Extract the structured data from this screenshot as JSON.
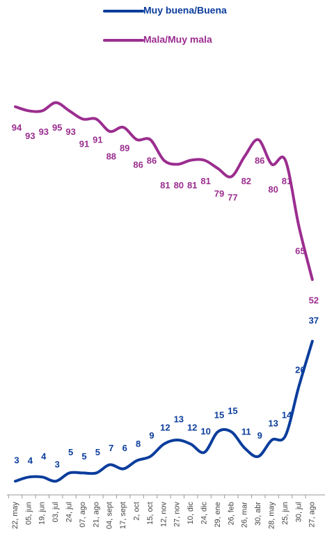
{
  "chart_data": {
    "type": "line",
    "categories": [
      "22, may",
      "05, jun",
      "19, jun",
      "03, jul",
      "24, jul",
      "07, ago",
      "21, ago",
      "04, sept",
      "17, sept",
      "2, oct",
      "15, oct",
      "12, nov",
      "27, nov",
      "10, dic",
      "24, dic",
      "29, ene",
      "26, feb",
      "26, mar",
      "30, abr",
      "28, may",
      "25, jun",
      "30, jul",
      "27, ago"
    ],
    "series": [
      {
        "name": "Muy buena/Buena",
        "color": "#0b3d9c",
        "values": [
          3,
          4,
          4,
          3,
          5,
          5,
          5,
          7,
          6,
          8,
          9,
          12,
          13,
          12,
          10,
          15,
          15,
          11,
          9,
          13,
          14,
          26,
          37
        ]
      },
      {
        "name": "Mala/Muy mala",
        "color": "#9b2d8f",
        "values": [
          94,
          93,
          93,
          95,
          93,
          91,
          91,
          88,
          89,
          86,
          86,
          81,
          80,
          81,
          81,
          79,
          77,
          82,
          86,
          80,
          81,
          65,
          52
        ]
      }
    ],
    "ylim": [
      0,
      100
    ]
  }
}
